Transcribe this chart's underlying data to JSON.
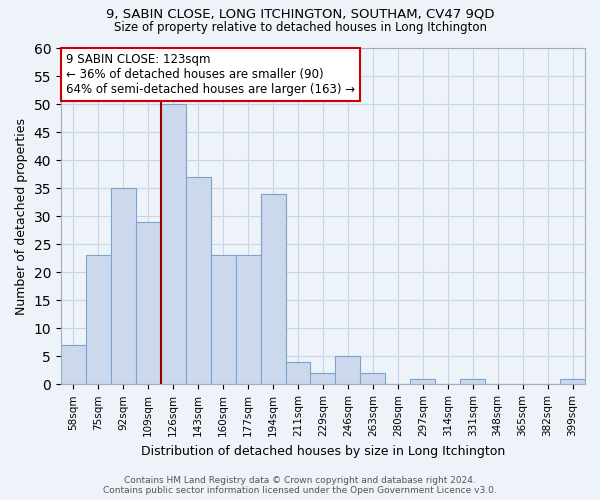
{
  "title1": "9, SABIN CLOSE, LONG ITCHINGTON, SOUTHAM, CV47 9QD",
  "title2": "Size of property relative to detached houses in Long Itchington",
  "xlabel": "Distribution of detached houses by size in Long Itchington",
  "ylabel": "Number of detached properties",
  "categories": [
    "58sqm",
    "75sqm",
    "92sqm",
    "109sqm",
    "126sqm",
    "143sqm",
    "160sqm",
    "177sqm",
    "194sqm",
    "211sqm",
    "229sqm",
    "246sqm",
    "263sqm",
    "280sqm",
    "297sqm",
    "314sqm",
    "331sqm",
    "348sqm",
    "365sqm",
    "382sqm",
    "399sqm"
  ],
  "values": [
    7,
    23,
    35,
    29,
    50,
    37,
    23,
    23,
    34,
    4,
    2,
    5,
    2,
    0,
    1,
    0,
    1,
    0,
    0,
    0,
    1
  ],
  "bar_color": "#ccd9ed",
  "bar_edge_color": "#7ba3cc",
  "subject_line_color": "#990000",
  "annotation_text": "9 SABIN CLOSE: 123sqm\n← 36% of detached houses are smaller (90)\n64% of semi-detached houses are larger (163) →",
  "annotation_box_color": "white",
  "annotation_box_edge_color": "#cc0000",
  "ylim": [
    0,
    60
  ],
  "yticks": [
    0,
    5,
    10,
    15,
    20,
    25,
    30,
    35,
    40,
    45,
    50,
    55,
    60
  ],
  "footer_line1": "Contains HM Land Registry data © Crown copyright and database right 2024.",
  "footer_line2": "Contains public sector information licensed under the Open Government Licence v3.0.",
  "bg_color": "#eef2f9",
  "grid_color": "#c8d4e8"
}
